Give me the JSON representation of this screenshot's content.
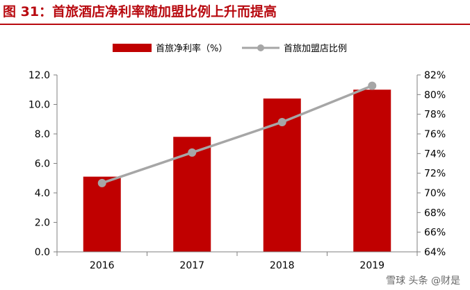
{
  "title": "图 31：首旅酒店净利率随加盟比例上升而提高",
  "watermark": "雪球 头条 @财是",
  "colors": {
    "title": "#b8090f",
    "bar": "#c00000",
    "line": "#a6a6a6",
    "axis": "#7f7f7f",
    "text": "#000000"
  },
  "chart_data": {
    "type": "bar+line",
    "categories": [
      "2016",
      "2017",
      "2018",
      "2019"
    ],
    "series": [
      {
        "name": "首旅净利率（%）",
        "type": "bar",
        "axis": "left",
        "values": [
          5.1,
          7.8,
          10.4,
          11.0
        ]
      },
      {
        "name": "首旅加盟店比例",
        "type": "line",
        "axis": "right",
        "values": [
          71.0,
          74.1,
          77.2,
          80.9
        ]
      }
    ],
    "y_left": {
      "ylim": [
        0,
        12
      ],
      "ticks": [
        0,
        2,
        4,
        6,
        8,
        10,
        12
      ],
      "tick_labels": [
        "0.0",
        "2.0",
        "4.0",
        "6.0",
        "8.0",
        "10.0",
        "12.0"
      ]
    },
    "y_right": {
      "ylim": [
        64,
        82
      ],
      "ticks": [
        64,
        66,
        68,
        70,
        72,
        74,
        76,
        78,
        80,
        82
      ],
      "tick_labels": [
        "64%",
        "66%",
        "68%",
        "70%",
        "72%",
        "74%",
        "76%",
        "78%",
        "80%",
        "82%"
      ]
    },
    "legend_position": "top-center",
    "grid": false
  }
}
